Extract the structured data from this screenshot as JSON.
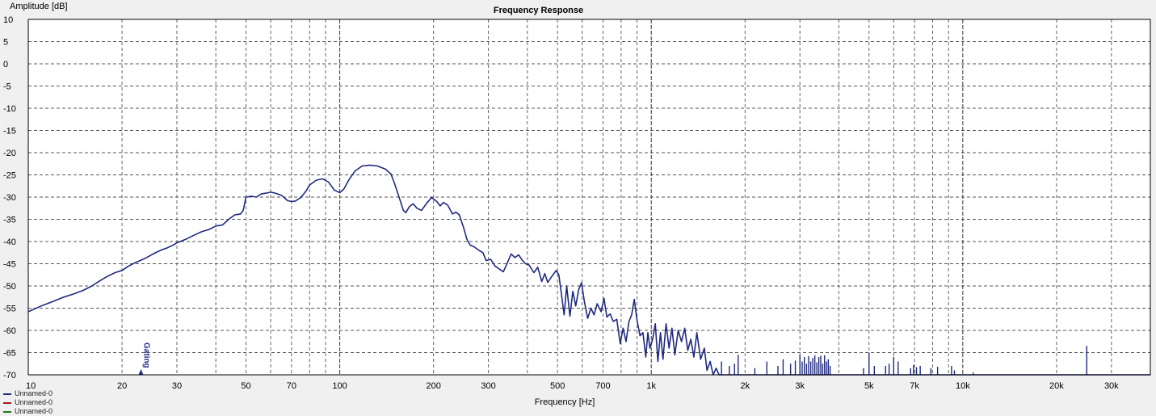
{
  "chart_data": {
    "type": "line",
    "title": "Frequency Response",
    "ylabel": "Amplitude [dB]",
    "xlabel": "Frequency [Hz]",
    "x_scale": "log",
    "xlim": [
      10,
      40000
    ],
    "ylim": [
      -70,
      10
    ],
    "grid": true,
    "y_ticks": [
      10,
      5,
      0,
      -5,
      -10,
      -15,
      -20,
      -25,
      -30,
      -35,
      -40,
      -45,
      -50,
      -55,
      -60,
      -65,
      -70
    ],
    "x_tick_labels": [
      {
        "value": 10,
        "label": "10"
      },
      {
        "value": 20,
        "label": "20"
      },
      {
        "value": 30,
        "label": "30"
      },
      {
        "value": 50,
        "label": "50"
      },
      {
        "value": 70,
        "label": "70"
      },
      {
        "value": 100,
        "label": "100"
      },
      {
        "value": 200,
        "label": "200"
      },
      {
        "value": 300,
        "label": "300"
      },
      {
        "value": 500,
        "label": "500"
      },
      {
        "value": 700,
        "label": "700"
      },
      {
        "value": 1000,
        "label": "1k"
      },
      {
        "value": 2000,
        "label": "2k"
      },
      {
        "value": 3000,
        "label": "3k"
      },
      {
        "value": 5000,
        "label": "5k"
      },
      {
        "value": 7000,
        "label": "7k"
      },
      {
        "value": 10000,
        "label": "10k"
      },
      {
        "value": 20000,
        "label": "20k"
      },
      {
        "value": 30000,
        "label": "30k"
      }
    ],
    "marker": {
      "label": "Gating",
      "x": 23
    },
    "legend": [
      {
        "name": "Unnamed-0",
        "color": "#1f2a80"
      },
      {
        "name": "Unnamed-0",
        "color": "#a01818"
      },
      {
        "name": "Unnamed-0",
        "color": "#1a7a1a"
      }
    ],
    "series": [
      {
        "name": "Unnamed-0",
        "color": "#1f2a80",
        "points": [
          [
            10,
            -55.8
          ],
          [
            11,
            -54.5
          ],
          [
            12,
            -53.5
          ],
          [
            13,
            -52.5
          ],
          [
            14,
            -51.8
          ],
          [
            15,
            -51.0
          ],
          [
            16,
            -50.0
          ],
          [
            17,
            -48.8
          ],
          [
            18,
            -47.8
          ],
          [
            19,
            -47.0
          ],
          [
            20,
            -46.5
          ],
          [
            21,
            -45.5
          ],
          [
            22,
            -44.8
          ],
          [
            23,
            -44.2
          ],
          [
            24,
            -43.6
          ],
          [
            25,
            -42.9
          ],
          [
            26,
            -42.3
          ],
          [
            27,
            -41.8
          ],
          [
            28,
            -41.4
          ],
          [
            29,
            -40.9
          ],
          [
            30,
            -40.3
          ],
          [
            32,
            -39.5
          ],
          [
            34,
            -38.6
          ],
          [
            36,
            -37.8
          ],
          [
            38,
            -37.3
          ],
          [
            40,
            -36.5
          ],
          [
            42,
            -36.3
          ],
          [
            44,
            -35.0
          ],
          [
            46,
            -34.0
          ],
          [
            48,
            -33.8
          ],
          [
            49,
            -33.0
          ],
          [
            50,
            -30.0
          ],
          [
            52,
            -29.8
          ],
          [
            54,
            -30.0
          ],
          [
            56,
            -29.3
          ],
          [
            58,
            -29.1
          ],
          [
            60,
            -28.9
          ],
          [
            62,
            -29.1
          ],
          [
            65,
            -29.6
          ],
          [
            68,
            -30.8
          ],
          [
            70,
            -31.0
          ],
          [
            72,
            -30.9
          ],
          [
            75,
            -30.1
          ],
          [
            78,
            -28.6
          ],
          [
            80,
            -27.3
          ],
          [
            84,
            -26.2
          ],
          [
            88,
            -25.9
          ],
          [
            92,
            -26.6
          ],
          [
            96,
            -28.4
          ],
          [
            100,
            -29.0
          ],
          [
            103,
            -28.2
          ],
          [
            107,
            -26.1
          ],
          [
            112,
            -24.1
          ],
          [
            118,
            -23.0
          ],
          [
            125,
            -22.8
          ],
          [
            132,
            -23.0
          ],
          [
            140,
            -23.7
          ],
          [
            146,
            -24.8
          ],
          [
            150,
            -27.0
          ],
          [
            155,
            -30.0
          ],
          [
            160,
            -33.0
          ],
          [
            163,
            -33.5
          ],
          [
            167,
            -32.2
          ],
          [
            172,
            -31.5
          ],
          [
            177,
            -32.5
          ],
          [
            183,
            -33.0
          ],
          [
            190,
            -31.4
          ],
          [
            197,
            -30.1
          ],
          [
            205,
            -31.0
          ],
          [
            210,
            -32.0
          ],
          [
            215,
            -31.2
          ],
          [
            222,
            -31.8
          ],
          [
            230,
            -33.8
          ],
          [
            236,
            -33.4
          ],
          [
            242,
            -34.0
          ],
          [
            250,
            -37.0
          ],
          [
            256,
            -39.5
          ],
          [
            262,
            -40.8
          ],
          [
            270,
            -41.2
          ],
          [
            280,
            -42.0
          ],
          [
            288,
            -42.5
          ],
          [
            295,
            -44.3
          ],
          [
            305,
            -44.0
          ],
          [
            315,
            -45.5
          ],
          [
            325,
            -46.2
          ],
          [
            335,
            -46.8
          ],
          [
            345,
            -44.8
          ],
          [
            355,
            -42.8
          ],
          [
            365,
            -43.6
          ],
          [
            375,
            -43.0
          ],
          [
            385,
            -44.2
          ],
          [
            395,
            -45.0
          ],
          [
            405,
            -45.3
          ],
          [
            420,
            -47.0
          ],
          [
            432,
            -45.8
          ],
          [
            445,
            -49.0
          ],
          [
            455,
            -47.2
          ],
          [
            465,
            -49.2
          ],
          [
            480,
            -47.8
          ],
          [
            495,
            -46.5
          ],
          [
            505,
            -47.5
          ],
          [
            515,
            -52.0
          ],
          [
            525,
            -56.5
          ],
          [
            535,
            -50.0
          ],
          [
            548,
            -56.8
          ],
          [
            560,
            -51.2
          ],
          [
            572,
            -54.5
          ],
          [
            585,
            -50.8
          ],
          [
            597,
            -49.3
          ],
          [
            610,
            -53.5
          ],
          [
            625,
            -57.3
          ],
          [
            640,
            -55.0
          ],
          [
            655,
            -56.5
          ],
          [
            670,
            -54.0
          ],
          [
            690,
            -55.8
          ],
          [
            705,
            -52.8
          ],
          [
            720,
            -57.0
          ],
          [
            738,
            -56.3
          ],
          [
            755,
            -58.0
          ],
          [
            775,
            -57.5
          ],
          [
            795,
            -63.0
          ],
          [
            812,
            -59.5
          ],
          [
            830,
            -62.5
          ],
          [
            848,
            -58.0
          ],
          [
            865,
            -56.5
          ],
          [
            882,
            -53.0
          ],
          [
            900,
            -57.8
          ],
          [
            920,
            -61.2
          ],
          [
            940,
            -60.5
          ],
          [
            960,
            -66.0
          ],
          [
            975,
            -60.5
          ],
          [
            990,
            -64.0
          ],
          [
            1010,
            -62.0
          ],
          [
            1030,
            -58.5
          ],
          [
            1050,
            -67.0
          ],
          [
            1070,
            -60.5
          ],
          [
            1090,
            -66.5
          ],
          [
            1115,
            -58.5
          ],
          [
            1140,
            -64.0
          ],
          [
            1165,
            -59.5
          ],
          [
            1190,
            -65.5
          ],
          [
            1220,
            -60.0
          ],
          [
            1250,
            -62.5
          ],
          [
            1280,
            -59.5
          ],
          [
            1310,
            -64.5
          ],
          [
            1340,
            -62.0
          ],
          [
            1370,
            -66.0
          ],
          [
            1400,
            -60.5
          ],
          [
            1440,
            -66.5
          ],
          [
            1480,
            -64.0
          ],
          [
            1510,
            -69.0
          ],
          [
            1545,
            -67.0
          ],
          [
            1580,
            -70.0
          ],
          [
            1615,
            -68.5
          ],
          [
            1650,
            -70.0
          ],
          [
            1700,
            -70.0
          ],
          [
            1750,
            -70.0
          ],
          [
            1800,
            -70.0
          ],
          [
            1850,
            -70.0
          ],
          [
            1900,
            -70.0
          ],
          [
            2100,
            -70.0
          ],
          [
            2300,
            -70.0
          ],
          [
            2500,
            -70.0
          ],
          [
            2700,
            -70.0
          ],
          [
            2900,
            -70.0
          ],
          [
            3100,
            -70.0
          ],
          [
            3300,
            -70.0
          ],
          [
            3500,
            -70.0
          ],
          [
            3700,
            -70.0
          ],
          [
            3900,
            -70.0
          ],
          [
            4200,
            -70.0
          ],
          [
            4600,
            -70.0
          ],
          [
            5000,
            -70.0
          ],
          [
            5500,
            -70.0
          ],
          [
            6000,
            -70.0
          ],
          [
            6500,
            -70.0
          ],
          [
            7000,
            -70.0
          ],
          [
            7500,
            -70.0
          ],
          [
            8000,
            -70.0
          ],
          [
            8500,
            -70.0
          ],
          [
            9000,
            -70.0
          ],
          [
            9400,
            -70.0
          ],
          [
            10000,
            -70.0
          ],
          [
            12000,
            -70.0
          ],
          [
            15000,
            -70.0
          ],
          [
            19000,
            -70.0
          ],
          [
            22000,
            -70.0
          ],
          [
            24500,
            -70.0
          ],
          [
            25000,
            -70.0
          ],
          [
            30000,
            -70.0
          ],
          [
            40000,
            -70.0
          ]
        ],
        "spikes": [
          [
            1680,
            -67.0
          ],
          [
            1780,
            -68.0
          ],
          [
            1850,
            -67.5
          ],
          [
            1900,
            -65.5
          ],
          [
            2150,
            -68.5
          ],
          [
            2350,
            -67.0
          ],
          [
            2550,
            -68.0
          ],
          [
            2650,
            -66.5
          ],
          [
            2800,
            -67.5
          ],
          [
            2900,
            -66.8
          ],
          [
            3000,
            -65.5
          ],
          [
            3050,
            -67.0
          ],
          [
            3100,
            -66.0
          ],
          [
            3150,
            -67.5
          ],
          [
            3200,
            -65.8
          ],
          [
            3250,
            -67.0
          ],
          [
            3300,
            -66.2
          ],
          [
            3350,
            -65.6
          ],
          [
            3400,
            -67.2
          ],
          [
            3450,
            -66.0
          ],
          [
            3500,
            -65.7
          ],
          [
            3550,
            -67.5
          ],
          [
            3600,
            -65.6
          ],
          [
            3650,
            -67.0
          ],
          [
            3700,
            -66.5
          ],
          [
            3750,
            -68.0
          ],
          [
            4800,
            -68.5
          ],
          [
            5000,
            -65.0
          ],
          [
            5200,
            -68.0
          ],
          [
            5650,
            -68.0
          ],
          [
            5800,
            -67.5
          ],
          [
            6000,
            -66.0
          ],
          [
            6200,
            -67.0
          ],
          [
            6800,
            -68.5
          ],
          [
            6950,
            -67.8
          ],
          [
            7100,
            -68.3
          ],
          [
            7300,
            -68.0
          ],
          [
            7900,
            -68.5
          ],
          [
            8300,
            -68.2
          ],
          [
            9200,
            -68.0
          ],
          [
            9400,
            -69.0
          ],
          [
            10800,
            -69.5
          ],
          [
            25000,
            -63.5
          ]
        ]
      }
    ]
  }
}
